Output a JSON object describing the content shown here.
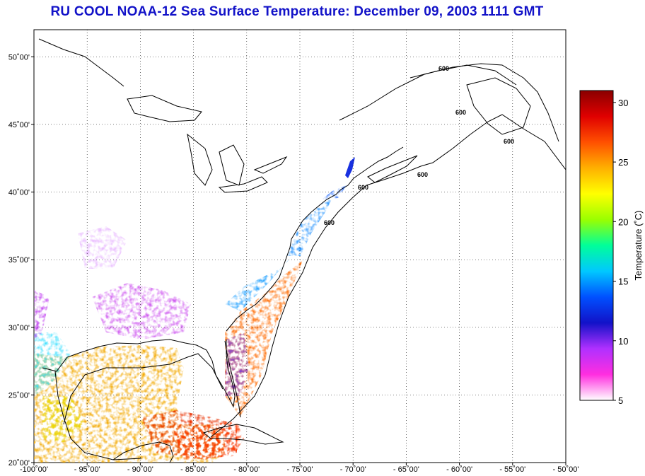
{
  "title": "RU COOL  NOAA-12  Sea Surface Temperature:  December 09, 2003 1111 GMT",
  "map": {
    "lon_range": [
      -100,
      -50
    ],
    "lat_range": [
      20,
      52
    ],
    "lon_ticks": [
      {
        "value": -100,
        "label": "-100˚00'"
      },
      {
        "value": -95,
        "label": "- 95˚00'"
      },
      {
        "value": -90,
        "label": "- 90˚00'"
      },
      {
        "value": -85,
        "label": "- 85˚00'"
      },
      {
        "value": -80,
        "label": "- 80˚00'"
      },
      {
        "value": -75,
        "label": "- 75˚00'"
      },
      {
        "value": -70,
        "label": "- 70˚00'"
      },
      {
        "value": -65,
        "label": "- 65˚00'"
      },
      {
        "value": -60,
        "label": "- 60˚00'"
      },
      {
        "value": -55,
        "label": "- 55˚00'"
      },
      {
        "value": -50,
        "label": "- 50˚00'"
      }
    ],
    "lat_ticks": [
      {
        "value": 20,
        "label": "20˚00'"
      },
      {
        "value": 25,
        "label": "25˚00'"
      },
      {
        "value": 30,
        "label": "30˚00'"
      },
      {
        "value": 35,
        "label": "35˚00'"
      },
      {
        "value": 40,
        "label": "40˚00'"
      },
      {
        "value": 45,
        "label": "45˚00'"
      },
      {
        "value": 50,
        "label": "50˚00'"
      }
    ],
    "gridlines": "dotted",
    "contour_label": "600"
  },
  "colorbar": {
    "label": "Temperature (˚C)",
    "min": 5,
    "max": 31,
    "ticks": [
      5,
      10,
      15,
      20,
      25,
      30
    ],
    "colors": [
      "#ffffff",
      "#ff2ee0",
      "#b030ff",
      "#1212c8",
      "#0050ff",
      "#00c8ff",
      "#00ff9a",
      "#9aff00",
      "#ffff00",
      "#ffb000",
      "#ff5000",
      "#e00000",
      "#8a0000"
    ]
  }
}
